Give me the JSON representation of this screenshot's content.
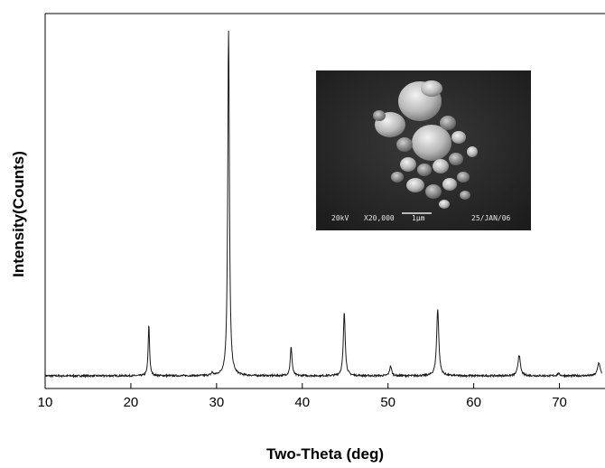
{
  "chart_data": {
    "type": "line",
    "title": "",
    "xlabel": "Two-Theta (deg)",
    "ylabel": "Intensity(Counts)",
    "xlim": [
      10,
      75
    ],
    "ylim": [
      0,
      100
    ],
    "x_ticks": [
      10,
      20,
      30,
      40,
      50,
      60,
      70
    ],
    "y_ticks_shown": false,
    "grid": false,
    "baseline": 1.8,
    "series": [
      {
        "peaks": [
          {
            "x": 22.1,
            "y": 14.5
          },
          {
            "x": 29.5,
            "y": 0.8
          },
          {
            "x": 31.4,
            "y": 100
          },
          {
            "x": 38.7,
            "y": 8.2
          },
          {
            "x": 44.9,
            "y": 18.0
          },
          {
            "x": 50.3,
            "y": 2.8
          },
          {
            "x": 55.8,
            "y": 19.0
          },
          {
            "x": 65.3,
            "y": 6.0
          },
          {
            "x": 69.9,
            "y": 0.6
          },
          {
            "x": 74.6,
            "y": 3.8
          }
        ]
      }
    ]
  },
  "inset": {
    "type": "SEM micrograph",
    "voltage": "20kV",
    "magnification": "X20,000",
    "scale": "1μm",
    "date": "25/JAN/06"
  }
}
